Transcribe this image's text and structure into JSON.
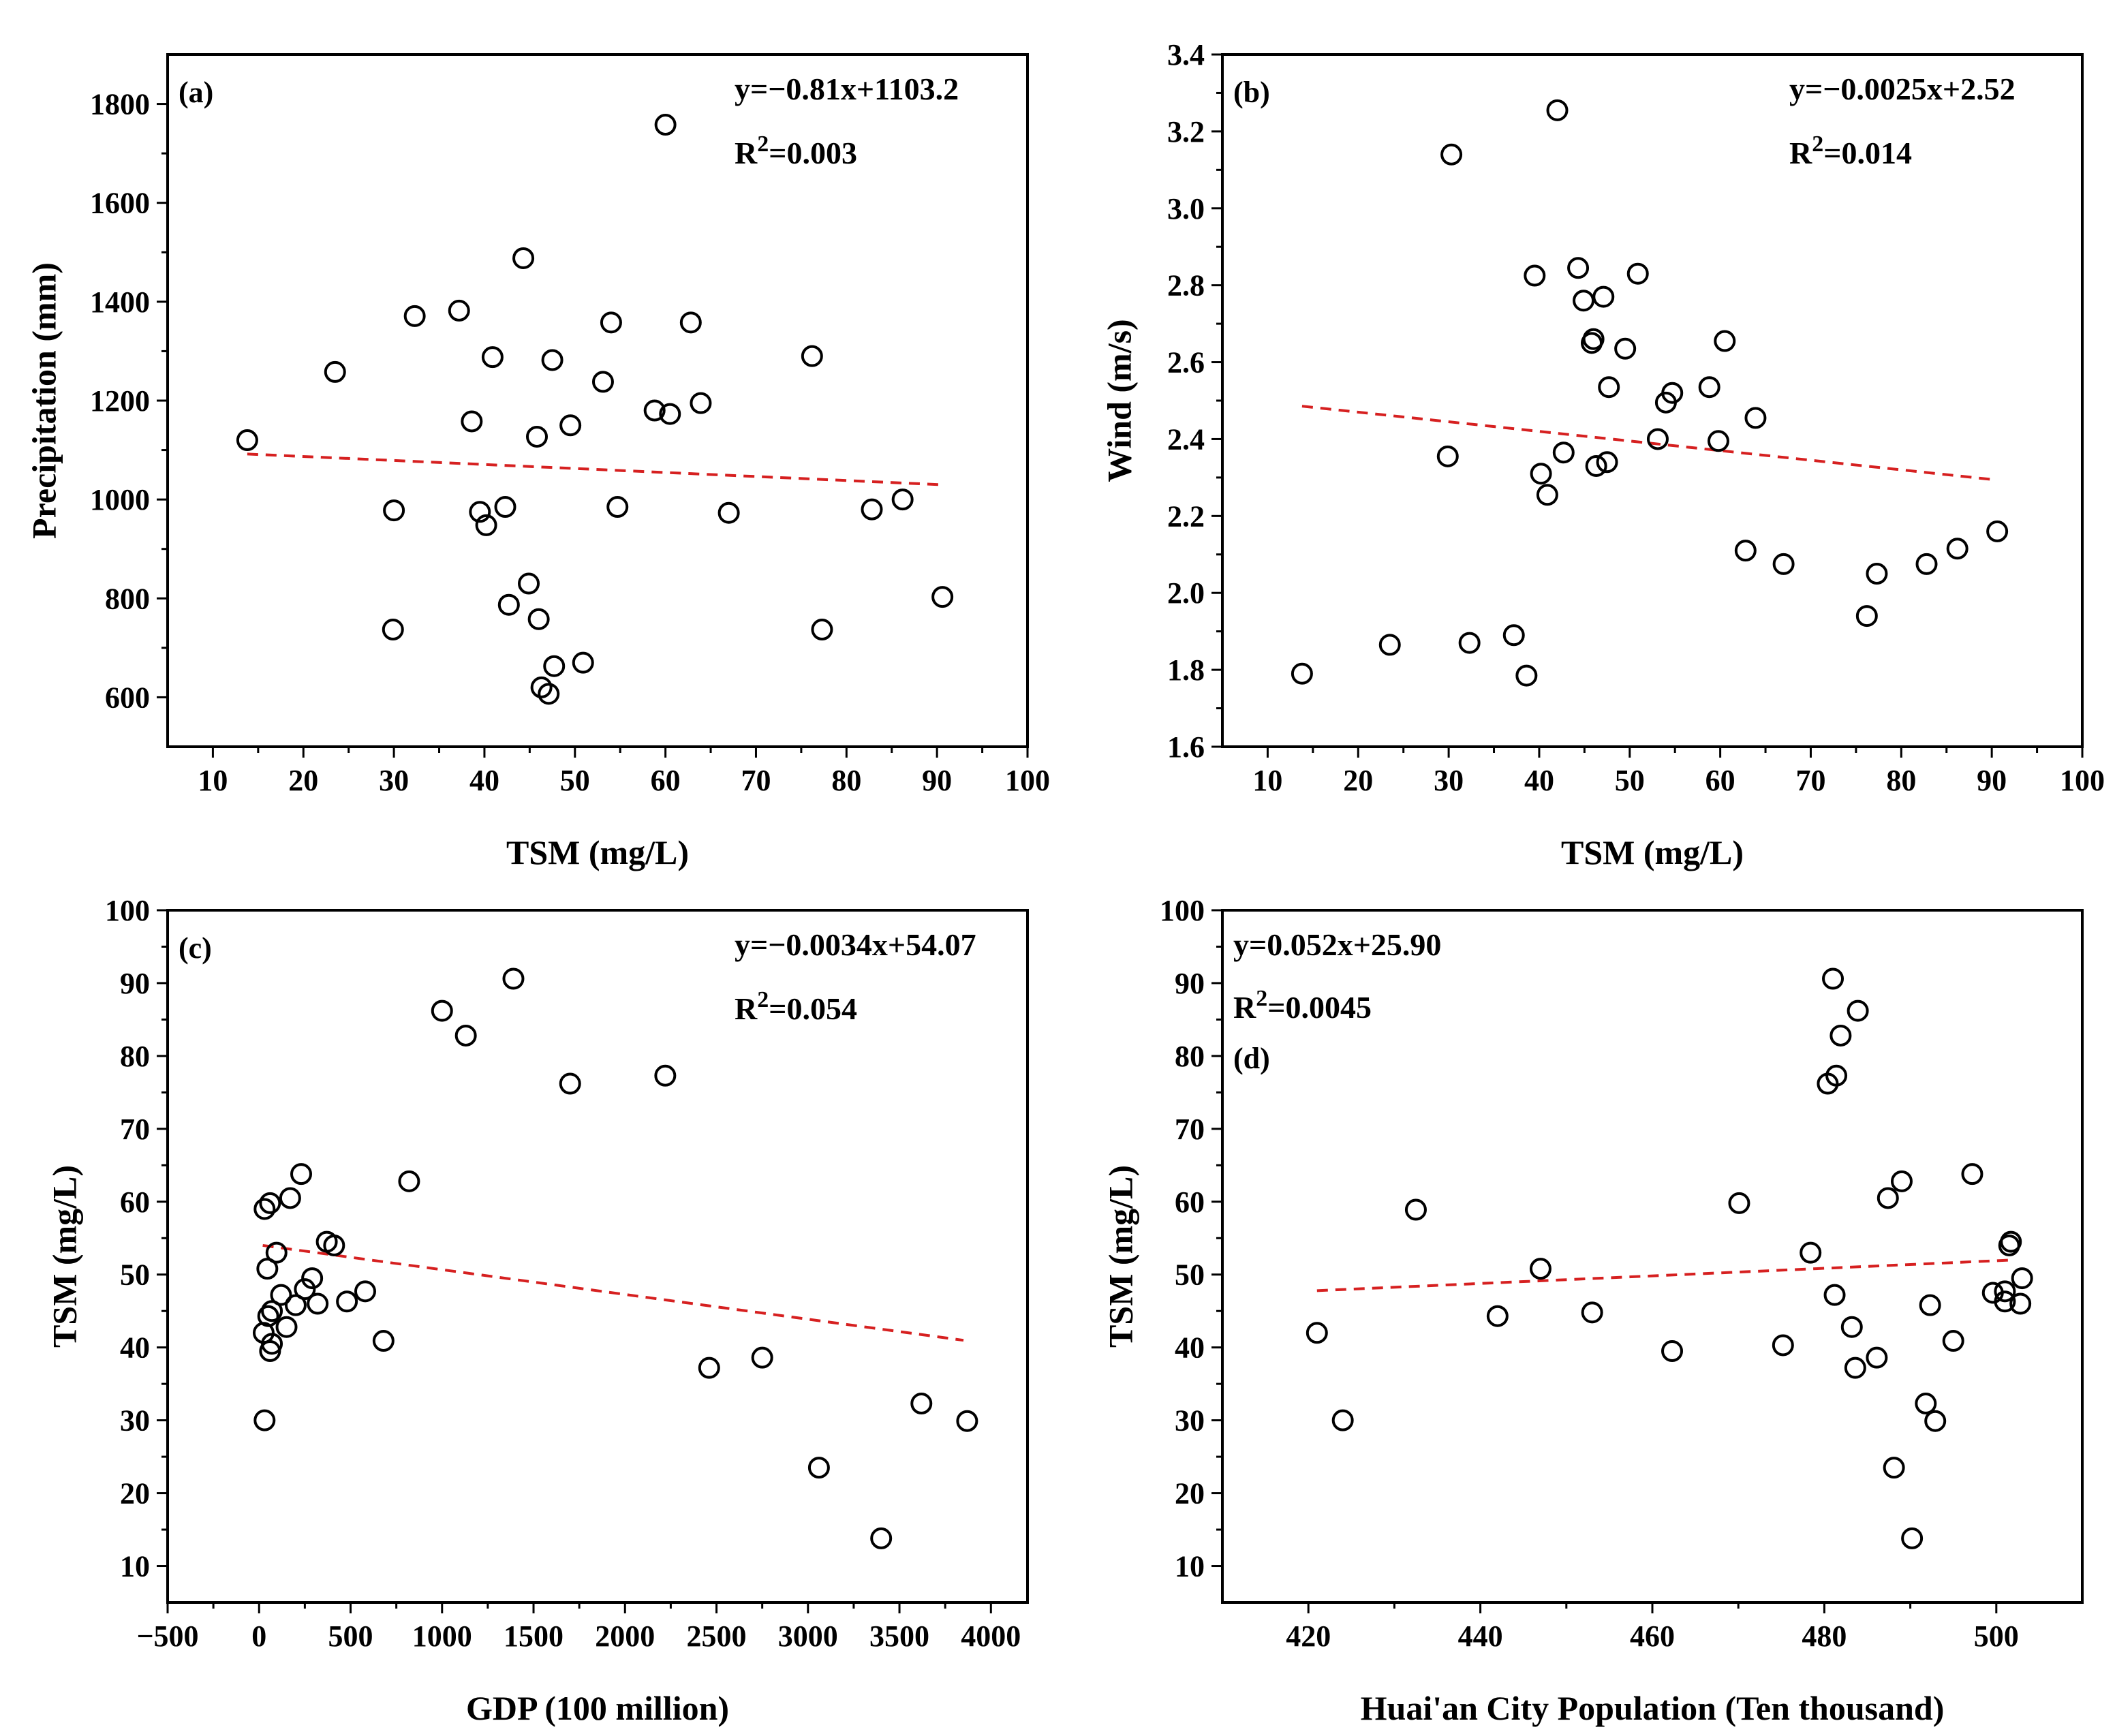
{
  "chart_data": [
    {
      "type": "scatter",
      "panel": "(a)",
      "xlabel": "TSM (mg/L)",
      "ylabel": "Precipitation (mm)",
      "xlim": [
        5,
        100
      ],
      "ylim": [
        500,
        1900
      ],
      "xticks": [
        10,
        20,
        30,
        40,
        50,
        60,
        70,
        80,
        90,
        100
      ],
      "yticks": [
        600,
        800,
        1000,
        1200,
        1400,
        1600,
        1800
      ],
      "equation": "y=−0.81x+1103.2",
      "r2_prefix": "R",
      "r2_sup": "2",
      "r2_value": "=0.003",
      "fit": {
        "slope": -0.81,
        "intercept": 1103.2,
        "x_range": [
          13.8,
          90.6
        ]
      },
      "points": [
        [
          13.8,
          1120
        ],
        [
          23.5,
          1258
        ],
        [
          30,
          978
        ],
        [
          29.9,
          737
        ],
        [
          32.3,
          1371
        ],
        [
          37.2,
          1382
        ],
        [
          38.6,
          1158
        ],
        [
          39.5,
          975
        ],
        [
          40.2,
          948
        ],
        [
          40.9,
          1288
        ],
        [
          42.3,
          985
        ],
        [
          42.7,
          787
        ],
        [
          44.3,
          1488
        ],
        [
          44.9,
          830
        ],
        [
          45.8,
          1127
        ],
        [
          46,
          758
        ],
        [
          46.3,
          620
        ],
        [
          47.1,
          607
        ],
        [
          47.5,
          1282
        ],
        [
          47.7,
          663
        ],
        [
          49.5,
          1150
        ],
        [
          50.9,
          670
        ],
        [
          53.1,
          1238
        ],
        [
          54.0,
          1358
        ],
        [
          54.7,
          985
        ],
        [
          58.8,
          1180
        ],
        [
          60.0,
          1758
        ],
        [
          60.5,
          1173
        ],
        [
          62.8,
          1358
        ],
        [
          63.9,
          1195
        ],
        [
          67.0,
          973
        ],
        [
          76.2,
          1290
        ],
        [
          77.3,
          737
        ],
        [
          82.8,
          980
        ],
        [
          86.2,
          1000
        ],
        [
          90.6,
          803
        ]
      ]
    },
    {
      "type": "scatter",
      "panel": "(b)",
      "xlabel": "TSM (mg/L)",
      "ylabel": "Wind (m/s)",
      "xlim": [
        5,
        100
      ],
      "ylim": [
        1.6,
        3.4
      ],
      "xticks": [
        10,
        20,
        30,
        40,
        50,
        60,
        70,
        80,
        90,
        100
      ],
      "yticks": [
        1.6,
        1.8,
        2.0,
        2.2,
        2.4,
        2.6,
        2.8,
        3.0,
        3.2,
        3.4
      ],
      "ytick_labels": [
        "1.6",
        "1.8",
        "2.0",
        "2.2",
        "2.4",
        "2.6",
        "2.8",
        "3.0",
        "3.2",
        "3.4"
      ],
      "equation": "y=−0.0025x+2.52",
      "r2_prefix": "R",
      "r2_sup": "2",
      "r2_value": "=0.014",
      "fit": {
        "slope": -0.0025,
        "intercept": 2.52,
        "x_range": [
          13.8,
          90.6
        ]
      },
      "points": [
        [
          13.8,
          1.79
        ],
        [
          23.5,
          1.865
        ],
        [
          29.9,
          2.355
        ],
        [
          30.3,
          3.14
        ],
        [
          32.3,
          1.87
        ],
        [
          37.2,
          1.89
        ],
        [
          38.6,
          1.785
        ],
        [
          39.5,
          2.825
        ],
        [
          40.2,
          2.31
        ],
        [
          40.9,
          2.255
        ],
        [
          42.0,
          3.255
        ],
        [
          42.7,
          2.365
        ],
        [
          44.3,
          2.845
        ],
        [
          44.9,
          2.76
        ],
        [
          45.8,
          2.65
        ],
        [
          46.0,
          2.66
        ],
        [
          46.3,
          2.33
        ],
        [
          47.1,
          2.77
        ],
        [
          47.5,
          2.34
        ],
        [
          47.7,
          2.535
        ],
        [
          49.5,
          2.635
        ],
        [
          50.9,
          2.83
        ],
        [
          53.1,
          2.4
        ],
        [
          54.0,
          2.495
        ],
        [
          54.7,
          2.52
        ],
        [
          58.8,
          2.535
        ],
        [
          59.8,
          2.395
        ],
        [
          60.5,
          2.655
        ],
        [
          62.8,
          2.11
        ],
        [
          63.9,
          2.455
        ],
        [
          67.0,
          2.075
        ],
        [
          76.2,
          1.94
        ],
        [
          77.3,
          2.05
        ],
        [
          82.8,
          2.075
        ],
        [
          86.2,
          2.115
        ],
        [
          90.6,
          2.16
        ]
      ]
    },
    {
      "type": "scatter",
      "panel": "(c)",
      "xlabel": "GDP (100 million)",
      "ylabel": "TSM (mg/L)",
      "xlim": [
        -500,
        4200
      ],
      "ylim": [
        5,
        100
      ],
      "xticks": [
        -500,
        0,
        500,
        1000,
        1500,
        2000,
        2500,
        3000,
        3500,
        4000
      ],
      "xtick_labels": [
        "−500",
        "0",
        "500",
        "1000",
        "1500",
        "2000",
        "2500",
        "3000",
        "3500",
        "4000"
      ],
      "yticks": [
        10,
        20,
        30,
        40,
        50,
        60,
        70,
        80,
        90,
        100
      ],
      "equation": "y=−0.0034x+54.07",
      "r2_prefix": "R",
      "r2_sup": "2",
      "r2_value": "=0.054",
      "fit": {
        "slope": -0.0034,
        "intercept": 54.07,
        "x_range": [
          20,
          3850
        ]
      },
      "points": [
        [
          25,
          42
        ],
        [
          30,
          59
        ],
        [
          30,
          30
        ],
        [
          45,
          50.8
        ],
        [
          50,
          44.3
        ],
        [
          60,
          59.8
        ],
        [
          60,
          39.5
        ],
        [
          70,
          40.5
        ],
        [
          70,
          45
        ],
        [
          95,
          53
        ],
        [
          120,
          47.2
        ],
        [
          150,
          42.8
        ],
        [
          170,
          60.5
        ],
        [
          200,
          45.8
        ],
        [
          230,
          63.8
        ],
        [
          250,
          48
        ],
        [
          290,
          49.5
        ],
        [
          320,
          46
        ],
        [
          370,
          54.5
        ],
        [
          410,
          54
        ],
        [
          480,
          46.3
        ],
        [
          580,
          47.7
        ],
        [
          680,
          40.9
        ],
        [
          820,
          62.8
        ],
        [
          1000,
          86.2
        ],
        [
          1130,
          82.8
        ],
        [
          1390,
          90.6
        ],
        [
          1700,
          76.2
        ],
        [
          2220,
          77.3
        ],
        [
          2460,
          37.2
        ],
        [
          2750,
          38.6
        ],
        [
          3060,
          23.5
        ],
        [
          3400,
          13.8
        ],
        [
          3620,
          32.3
        ],
        [
          3870,
          29.9
        ]
      ]
    },
    {
      "type": "scatter",
      "panel": "(d)",
      "xlabel": "Huai'an City Population (Ten thousand)",
      "ylabel": "TSM (mg/L)",
      "xlim": [
        410,
        510
      ],
      "ylim": [
        5,
        100
      ],
      "xticks": [
        420,
        440,
        460,
        480,
        500
      ],
      "yticks": [
        10,
        20,
        30,
        40,
        50,
        60,
        70,
        80,
        90,
        100
      ],
      "equation": "y=0.052x+25.90",
      "r2_prefix": "R",
      "r2_sup": "2",
      "r2_value": "=0.0045",
      "fit": {
        "slope": 0.052,
        "intercept": 25.9,
        "x_range": [
          421,
          502
        ]
      },
      "points": [
        [
          421,
          42
        ],
        [
          424,
          30
        ],
        [
          432.5,
          58.9
        ],
        [
          442,
          44.3
        ],
        [
          447,
          50.8
        ],
        [
          453,
          44.8
        ],
        [
          462.3,
          39.5
        ],
        [
          470.1,
          59.8
        ],
        [
          475.2,
          40.3
        ],
        [
          478.4,
          53
        ],
        [
          480.4,
          76.2
        ],
        [
          481,
          90.6
        ],
        [
          481.2,
          47.2
        ],
        [
          481.4,
          77.3
        ],
        [
          481.9,
          82.8
        ],
        [
          483.2,
          42.8
        ],
        [
          483.6,
          37.2
        ],
        [
          483.9,
          86.2
        ],
        [
          486.1,
          38.6
        ],
        [
          487.4,
          60.5
        ],
        [
          488.1,
          23.5
        ],
        [
          489,
          62.8
        ],
        [
          490.2,
          13.8
        ],
        [
          491.8,
          32.3
        ],
        [
          492.3,
          45.8
        ],
        [
          492.9,
          29.9
        ],
        [
          495,
          40.9
        ],
        [
          497.2,
          63.8
        ],
        [
          499.6,
          47.5
        ],
        [
          501,
          47.7
        ],
        [
          501,
          46.3
        ],
        [
          501.5,
          54
        ],
        [
          501.7,
          54.5
        ],
        [
          502.8,
          46
        ],
        [
          503,
          49.5
        ]
      ]
    }
  ]
}
